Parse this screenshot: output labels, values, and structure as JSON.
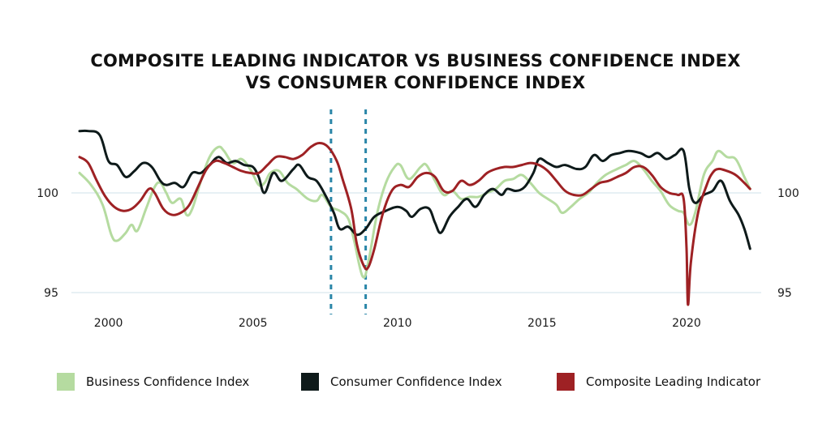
{
  "chart_data": {
    "type": "line",
    "title_lines": [
      "COMPOSITE LEADING INDICATOR VS BUSINESS CONFIDENCE INDEX",
      "VS CONSUMER CONFIDENCE INDEX"
    ],
    "xlim": [
      1999,
      2022.5
    ],
    "ylim": [
      94.5,
      104
    ],
    "x_ticks": [
      2000,
      2005,
      2010,
      2015,
      2020
    ],
    "y_ticks": [
      95,
      100
    ],
    "gridlines_y": [
      95,
      100
    ],
    "vlines": [
      2007.7,
      2008.9
    ],
    "legend_position": "bottom",
    "series": [
      {
        "name": "Business Confidence Index",
        "color": "#b5dba0",
        "points": [
          [
            1999.0,
            101.0
          ],
          [
            1999.4,
            100.4
          ],
          [
            1999.8,
            99.4
          ],
          [
            2000.1,
            97.9
          ],
          [
            2000.3,
            97.6
          ],
          [
            2000.6,
            98.0
          ],
          [
            2000.8,
            98.4
          ],
          [
            2001.0,
            98.1
          ],
          [
            2001.3,
            99.2
          ],
          [
            2001.6,
            100.3
          ],
          [
            2001.8,
            100.5
          ],
          [
            2002.0,
            100.0
          ],
          [
            2002.2,
            99.5
          ],
          [
            2002.5,
            99.7
          ],
          [
            2002.7,
            98.9
          ],
          [
            2002.9,
            99.2
          ],
          [
            2003.2,
            100.6
          ],
          [
            2003.5,
            101.8
          ],
          [
            2003.8,
            102.3
          ],
          [
            2004.0,
            102.1
          ],
          [
            2004.3,
            101.5
          ],
          [
            2004.6,
            101.7
          ],
          [
            2004.9,
            101.2
          ],
          [
            2005.2,
            100.4
          ],
          [
            2005.4,
            100.5
          ],
          [
            2005.6,
            101.0
          ],
          [
            2005.9,
            101.1
          ],
          [
            2006.2,
            100.5
          ],
          [
            2006.5,
            100.2
          ],
          [
            2006.9,
            99.7
          ],
          [
            2007.2,
            99.6
          ],
          [
            2007.4,
            99.9
          ],
          [
            2007.7,
            99.3
          ],
          [
            2008.0,
            99.1
          ],
          [
            2008.3,
            98.7
          ],
          [
            2008.5,
            97.6
          ],
          [
            2008.8,
            95.8
          ],
          [
            2009.0,
            96.6
          ],
          [
            2009.3,
            99.0
          ],
          [
            2009.6,
            100.5
          ],
          [
            2009.9,
            101.3
          ],
          [
            2010.1,
            101.4
          ],
          [
            2010.4,
            100.7
          ],
          [
            2010.8,
            101.3
          ],
          [
            2011.0,
            101.4
          ],
          [
            2011.3,
            100.6
          ],
          [
            2011.6,
            99.9
          ],
          [
            2011.9,
            100.1
          ],
          [
            2012.2,
            99.7
          ],
          [
            2012.5,
            99.8
          ],
          [
            2012.8,
            99.8
          ],
          [
            2013.1,
            100.0
          ],
          [
            2013.4,
            100.2
          ],
          [
            2013.7,
            100.6
          ],
          [
            2014.0,
            100.7
          ],
          [
            2014.3,
            100.9
          ],
          [
            2014.6,
            100.5
          ],
          [
            2014.9,
            100.0
          ],
          [
            2015.2,
            99.7
          ],
          [
            2015.5,
            99.4
          ],
          [
            2015.7,
            99.0
          ],
          [
            2016.0,
            99.3
          ],
          [
            2016.3,
            99.7
          ],
          [
            2016.6,
            100.0
          ],
          [
            2016.9,
            100.5
          ],
          [
            2017.2,
            100.9
          ],
          [
            2017.6,
            101.2
          ],
          [
            2017.9,
            101.4
          ],
          [
            2018.2,
            101.6
          ],
          [
            2018.5,
            101.2
          ],
          [
            2018.8,
            100.6
          ],
          [
            2019.1,
            100.1
          ],
          [
            2019.4,
            99.4
          ],
          [
            2019.7,
            99.1
          ],
          [
            2019.9,
            99.0
          ],
          [
            2020.1,
            98.4
          ],
          [
            2020.3,
            99.0
          ],
          [
            2020.6,
            100.9
          ],
          [
            2020.9,
            101.6
          ],
          [
            2021.1,
            102.1
          ],
          [
            2021.4,
            101.8
          ],
          [
            2021.7,
            101.7
          ],
          [
            2022.0,
            100.8
          ],
          [
            2022.2,
            100.2
          ]
        ]
      },
      {
        "name": "Consumer Confidence Index",
        "color": "#0e1a1a",
        "points": [
          [
            1999.0,
            103.1
          ],
          [
            1999.3,
            103.1
          ],
          [
            1999.7,
            102.9
          ],
          [
            2000.0,
            101.6
          ],
          [
            2000.3,
            101.4
          ],
          [
            2000.6,
            100.8
          ],
          [
            2000.9,
            101.1
          ],
          [
            2001.2,
            101.5
          ],
          [
            2001.5,
            101.3
          ],
          [
            2001.8,
            100.6
          ],
          [
            2002.0,
            100.4
          ],
          [
            2002.3,
            100.5
          ],
          [
            2002.6,
            100.3
          ],
          [
            2002.9,
            101.0
          ],
          [
            2003.2,
            101.0
          ],
          [
            2003.5,
            101.4
          ],
          [
            2003.8,
            101.8
          ],
          [
            2004.1,
            101.5
          ],
          [
            2004.4,
            101.6
          ],
          [
            2004.7,
            101.4
          ],
          [
            2005.0,
            101.3
          ],
          [
            2005.2,
            100.8
          ],
          [
            2005.4,
            100.0
          ],
          [
            2005.7,
            101.0
          ],
          [
            2006.0,
            100.6
          ],
          [
            2006.4,
            101.2
          ],
          [
            2006.6,
            101.4
          ],
          [
            2006.9,
            100.8
          ],
          [
            2007.2,
            100.6
          ],
          [
            2007.5,
            99.9
          ],
          [
            2007.8,
            99.0
          ],
          [
            2008.0,
            98.2
          ],
          [
            2008.3,
            98.3
          ],
          [
            2008.6,
            97.9
          ],
          [
            2008.9,
            98.2
          ],
          [
            2009.2,
            98.8
          ],
          [
            2009.6,
            99.1
          ],
          [
            2010.0,
            99.3
          ],
          [
            2010.3,
            99.1
          ],
          [
            2010.5,
            98.8
          ],
          [
            2010.8,
            99.2
          ],
          [
            2011.1,
            99.2
          ],
          [
            2011.3,
            98.5
          ],
          [
            2011.5,
            98.0
          ],
          [
            2011.8,
            98.8
          ],
          [
            2012.1,
            99.3
          ],
          [
            2012.4,
            99.7
          ],
          [
            2012.7,
            99.3
          ],
          [
            2013.0,
            99.9
          ],
          [
            2013.3,
            100.2
          ],
          [
            2013.6,
            99.9
          ],
          [
            2013.8,
            100.2
          ],
          [
            2014.1,
            100.1
          ],
          [
            2014.4,
            100.3
          ],
          [
            2014.7,
            101.0
          ],
          [
            2014.9,
            101.7
          ],
          [
            2015.2,
            101.5
          ],
          [
            2015.5,
            101.3
          ],
          [
            2015.8,
            101.4
          ],
          [
            2016.2,
            101.2
          ],
          [
            2016.5,
            101.3
          ],
          [
            2016.8,
            101.9
          ],
          [
            2017.1,
            101.6
          ],
          [
            2017.4,
            101.9
          ],
          [
            2017.7,
            102.0
          ],
          [
            2018.0,
            102.1
          ],
          [
            2018.4,
            102.0
          ],
          [
            2018.7,
            101.8
          ],
          [
            2019.0,
            102.0
          ],
          [
            2019.3,
            101.7
          ],
          [
            2019.6,
            101.9
          ],
          [
            2019.9,
            102.1
          ],
          [
            2020.1,
            100.2
          ],
          [
            2020.3,
            99.5
          ],
          [
            2020.6,
            99.9
          ],
          [
            2020.9,
            100.1
          ],
          [
            2021.2,
            100.6
          ],
          [
            2021.5,
            99.6
          ],
          [
            2021.8,
            98.9
          ],
          [
            2022.0,
            98.2
          ],
          [
            2022.2,
            97.2
          ]
        ]
      },
      {
        "name": "Composite Leading Indicator",
        "color": "#9e2124",
        "points": [
          [
            1999.0,
            101.8
          ],
          [
            1999.3,
            101.5
          ],
          [
            1999.6,
            100.6
          ],
          [
            1999.9,
            99.8
          ],
          [
            2000.2,
            99.3
          ],
          [
            2000.5,
            99.1
          ],
          [
            2000.8,
            99.2
          ],
          [
            2001.1,
            99.6
          ],
          [
            2001.4,
            100.2
          ],
          [
            2001.6,
            100.0
          ],
          [
            2001.9,
            99.2
          ],
          [
            2002.2,
            98.9
          ],
          [
            2002.5,
            99.0
          ],
          [
            2002.8,
            99.4
          ],
          [
            2003.1,
            100.3
          ],
          [
            2003.4,
            101.2
          ],
          [
            2003.7,
            101.6
          ],
          [
            2004.0,
            101.5
          ],
          [
            2004.3,
            101.3
          ],
          [
            2004.6,
            101.1
          ],
          [
            2004.9,
            101.0
          ],
          [
            2005.2,
            101.0
          ],
          [
            2005.5,
            101.4
          ],
          [
            2005.8,
            101.8
          ],
          [
            2006.1,
            101.8
          ],
          [
            2006.4,
            101.7
          ],
          [
            2006.7,
            101.9
          ],
          [
            2007.0,
            102.3
          ],
          [
            2007.3,
            102.5
          ],
          [
            2007.6,
            102.3
          ],
          [
            2007.9,
            101.6
          ],
          [
            2008.1,
            100.7
          ],
          [
            2008.4,
            99.2
          ],
          [
            2008.6,
            97.4
          ],
          [
            2008.85,
            96.3
          ],
          [
            2009.0,
            96.3
          ],
          [
            2009.2,
            97.2
          ],
          [
            2009.5,
            99.0
          ],
          [
            2009.8,
            100.1
          ],
          [
            2010.1,
            100.4
          ],
          [
            2010.4,
            100.3
          ],
          [
            2010.7,
            100.8
          ],
          [
            2011.0,
            101.0
          ],
          [
            2011.3,
            100.8
          ],
          [
            2011.6,
            100.1
          ],
          [
            2011.9,
            100.1
          ],
          [
            2012.2,
            100.6
          ],
          [
            2012.5,
            100.4
          ],
          [
            2012.8,
            100.6
          ],
          [
            2013.1,
            101.0
          ],
          [
            2013.4,
            101.2
          ],
          [
            2013.7,
            101.3
          ],
          [
            2014.0,
            101.3
          ],
          [
            2014.3,
            101.4
          ],
          [
            2014.6,
            101.5
          ],
          [
            2014.9,
            101.4
          ],
          [
            2015.2,
            101.1
          ],
          [
            2015.5,
            100.6
          ],
          [
            2015.8,
            100.1
          ],
          [
            2016.1,
            99.9
          ],
          [
            2016.4,
            99.9
          ],
          [
            2016.7,
            100.2
          ],
          [
            2017.0,
            100.5
          ],
          [
            2017.3,
            100.6
          ],
          [
            2017.6,
            100.8
          ],
          [
            2017.9,
            101.0
          ],
          [
            2018.2,
            101.3
          ],
          [
            2018.5,
            101.3
          ],
          [
            2018.8,
            100.9
          ],
          [
            2019.1,
            100.3
          ],
          [
            2019.4,
            100.0
          ],
          [
            2019.7,
            99.9
          ],
          [
            2019.9,
            99.7
          ],
          [
            2020.0,
            97.2
          ],
          [
            2020.05,
            94.4
          ],
          [
            2020.15,
            96.5
          ],
          [
            2020.4,
            99.0
          ],
          [
            2020.7,
            100.4
          ],
          [
            2020.9,
            101.0
          ],
          [
            2021.1,
            101.2
          ],
          [
            2021.4,
            101.1
          ],
          [
            2021.7,
            100.9
          ],
          [
            2022.0,
            100.5
          ],
          [
            2022.2,
            100.2
          ]
        ]
      }
    ]
  }
}
